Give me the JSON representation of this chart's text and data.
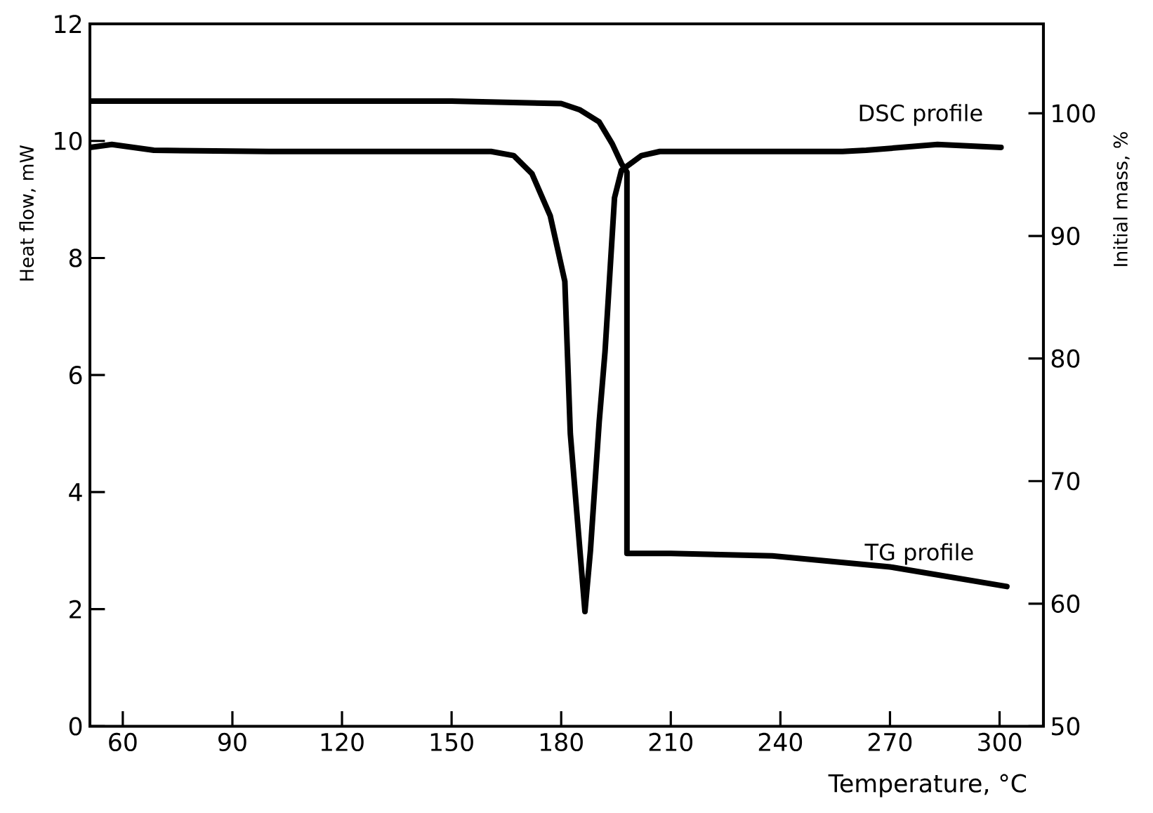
{
  "chart_data": {
    "type": "line",
    "xlabel": "Temperature, °C",
    "ylabel": "Heat flow, mW",
    "y2label": "Initial mass, %",
    "legend": false,
    "xlim": [
      51,
      312
    ],
    "xticks": [
      60,
      90,
      120,
      150,
      180,
      210,
      240,
      270,
      300
    ],
    "ylim": [
      0,
      12
    ],
    "yticks": [
      0,
      2,
      4,
      6,
      8,
      10,
      12
    ],
    "y2lim": [
      50,
      107.3
    ],
    "y2ticks": [
      50,
      60,
      70,
      80,
      90,
      100
    ],
    "series": [
      {
        "name": "DSC profile",
        "color": "#000000",
        "x": [
          51,
          57,
          68.5,
          100,
          130,
          160.8,
          167,
          172,
          177,
          181,
          182.5,
          186.5,
          188,
          190.4,
          192,
          194.6,
          196.5,
          202,
          207,
          230,
          257,
          263.5,
          283,
          300.4
        ],
        "values": [
          9.89,
          9.94,
          9.84,
          9.82,
          9.82,
          9.82,
          9.75,
          9.44,
          8.72,
          7.6,
          5.0,
          1.96,
          3.0,
          5.2,
          6.4,
          9.03,
          9.5,
          9.75,
          9.82,
          9.82,
          9.82,
          9.84,
          9.94,
          9.89
        ]
      },
      {
        "name": "TG profile",
        "color": "#000000",
        "axis": "y2",
        "x": [
          51,
          100,
          150,
          180,
          185,
          190.4,
          194,
          196.5,
          198,
          198,
          210,
          237.8,
          270,
          302
        ],
        "values": [
          101,
          101,
          101,
          100.8,
          100.3,
          99.3,
          97.5,
          95.9,
          95.2,
          64.1,
          64.1,
          63.9,
          63.0,
          61.4
        ]
      }
    ]
  }
}
